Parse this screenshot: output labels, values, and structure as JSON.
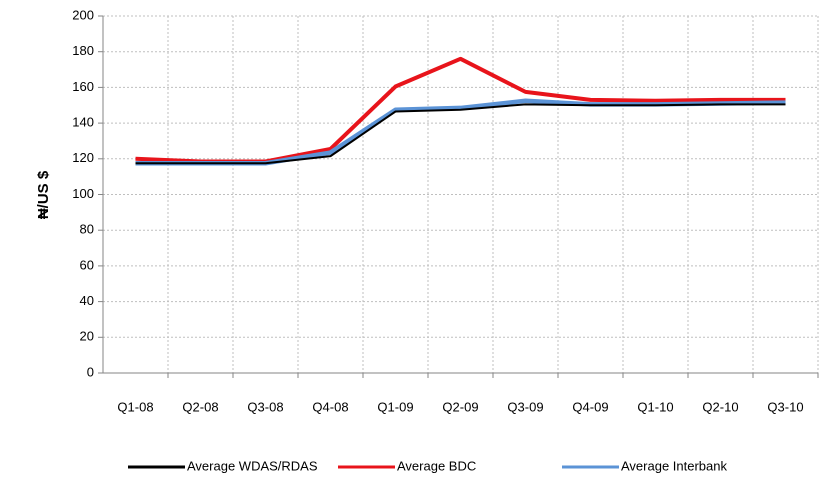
{
  "chart_data": {
    "type": "line",
    "y_label": "₦/US $",
    "categories": [
      "Q1-08",
      "Q2-08",
      "Q3-08",
      "Q4-08",
      "Q1-09",
      "Q2-09",
      "Q3-09",
      "Q4-09",
      "Q1-10",
      "Q2-10",
      "Q3-10"
    ],
    "series": [
      {
        "name": "Average WDAS/RDAS",
        "color": "#000000",
        "values": [
          117.5,
          117.5,
          117.5,
          121.5,
          146.5,
          147.5,
          150.5,
          150,
          150,
          150.5,
          150.5
        ]
      },
      {
        "name": "Average BDC",
        "color": "#e8141b",
        "values": [
          120,
          118.5,
          118.5,
          125.5,
          160.5,
          176,
          157.5,
          153,
          152.5,
          153,
          153
        ]
      },
      {
        "name": "Average Interbank",
        "color": "#5b93d6",
        "values": [
          117.5,
          117.5,
          117.5,
          123.5,
          147.5,
          148.5,
          152.5,
          150.5,
          150.5,
          151,
          151.5
        ]
      }
    ],
    "ylim": [
      0,
      200
    ],
    "yticks": [
      0,
      20,
      40,
      60,
      80,
      100,
      120,
      140,
      160,
      180,
      200
    ],
    "grid": true,
    "legend": "bottom"
  }
}
